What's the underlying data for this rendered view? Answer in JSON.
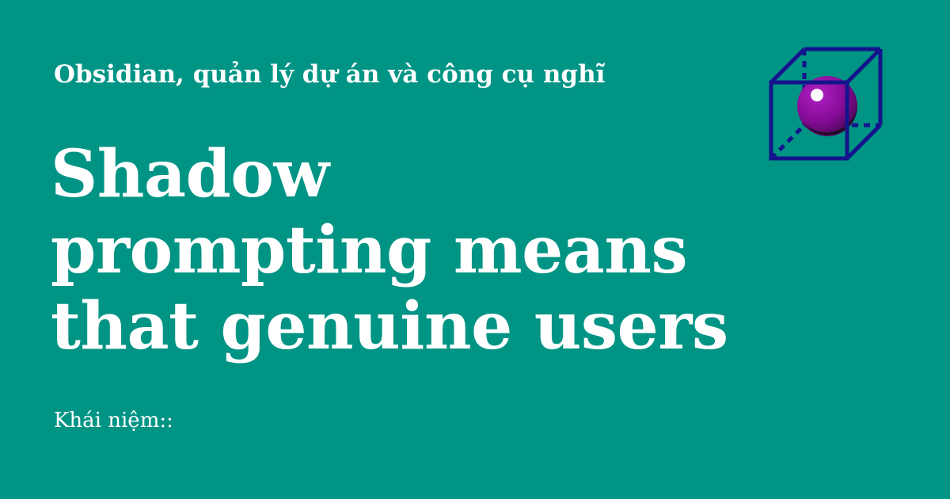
{
  "header": {
    "subtitle": "Obsidian, quản lý dự án và công cụ nghĩ"
  },
  "main": {
    "title_lines": [
      "Shadow",
      "prompting means",
      "that genuine users"
    ]
  },
  "footer": {
    "category_label": "Khái niệm::"
  },
  "logo": {
    "icon": "cube-with-sphere-icon"
  },
  "colors": {
    "background": "#009485",
    "text": "#ffffff",
    "logo_outline": "#14148c",
    "sphere": "#8a0f9a"
  }
}
